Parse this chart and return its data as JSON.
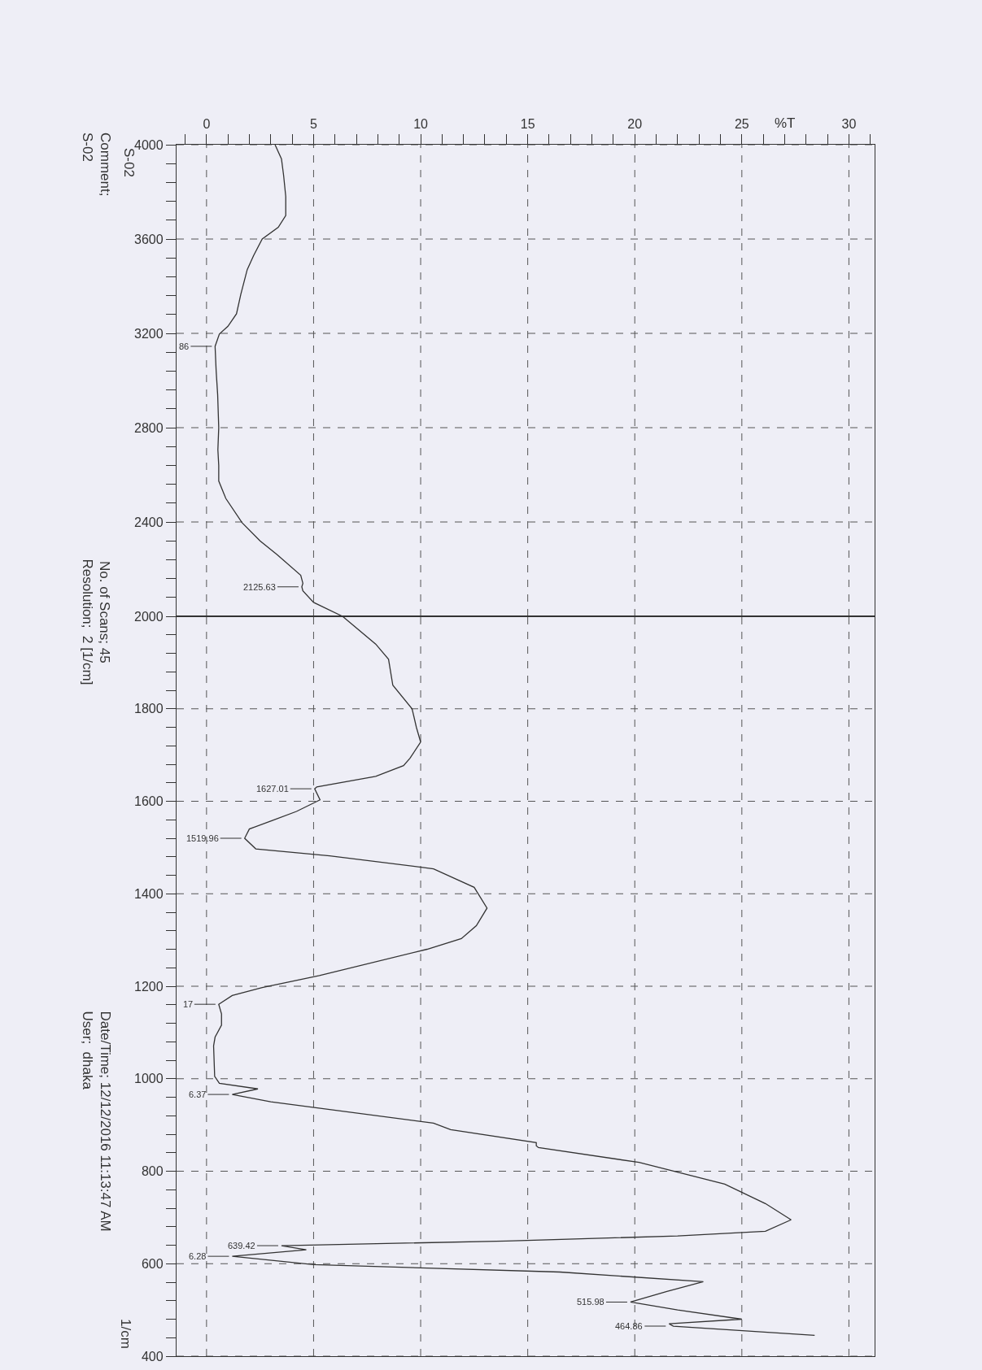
{
  "chart_data": [
    {
      "type": "line",
      "orientation": "horizontal",
      "xlabel": "%T",
      "grid": true,
      "line_style": "solid",
      "ylim": [
        2000,
        4000
      ],
      "yticks": [
        4000,
        {
          "value": 3920,
          "label": null
        },
        {
          "value": 3840,
          "label": null
        },
        {
          "value": 3760,
          "label": null
        },
        {
          "value": 3680,
          "label": null
        },
        3600,
        {
          "value": 3520,
          "label": null
        },
        {
          "value": 3440,
          "label": null
        },
        {
          "value": 3360,
          "label": null
        },
        {
          "value": 3280,
          "label": null
        },
        3200,
        {
          "value": 3120,
          "label": null
        },
        {
          "value": 3040,
          "label": null
        },
        {
          "value": 2960,
          "label": null
        },
        {
          "value": 2880,
          "label": null
        },
        2800,
        {
          "value": 2720,
          "label": null
        },
        {
          "value": 2640,
          "label": null
        },
        {
          "value": 2560,
          "label": null
        },
        {
          "value": 2480,
          "label": null
        },
        2400,
        {
          "value": 2320,
          "label": null
        },
        {
          "value": 2240,
          "label": null
        },
        {
          "value": 2160,
          "label": null
        },
        {
          "value": 2080,
          "label": null
        },
        2000
      ],
      "xlim": [
        -1.4,
        31.2
      ],
      "xticks": [
        {
          "value": -1,
          "label": null
        },
        0,
        {
          "value": 1,
          "label": null
        },
        {
          "value": 2,
          "label": null
        },
        {
          "value": 3,
          "label": null
        },
        {
          "value": 4,
          "label": null
        },
        5,
        {
          "value": 6,
          "label": null
        },
        {
          "value": 7,
          "label": null
        },
        {
          "value": 8,
          "label": null
        },
        {
          "value": 9,
          "label": null
        },
        10,
        {
          "value": 11,
          "label": null
        },
        {
          "value": 12,
          "label": null
        },
        {
          "value": 13,
          "label": null
        },
        {
          "value": 14,
          "label": null
        },
        15,
        {
          "value": 16,
          "label": null
        },
        {
          "value": 17,
          "label": null
        },
        {
          "value": 18,
          "label": null
        },
        {
          "value": 19,
          "label": null
        },
        20,
        {
          "value": 21,
          "label": null
        },
        {
          "value": 22,
          "label": null
        },
        {
          "value": 23,
          "label": null
        },
        {
          "value": 24,
          "label": null
        },
        25,
        {
          "value": 26,
          "label": null
        },
        {
          "value": 27,
          "label": null
        },
        {
          "value": 28,
          "label": null
        },
        {
          "value": 29,
          "label": null
        },
        30,
        {
          "value": 31,
          "label": null
        }
      ],
      "series": [
        {
          "color": "#333333",
          "x": [
            4000,
            3940,
            3870,
            3780,
            3700,
            3650,
            3600,
            3530,
            3470,
            3365,
            3283,
            3230,
            3197,
            3145,
            3040,
            2940,
            2800,
            2706,
            2640,
            2574,
            2500,
            2397,
            2320,
            2261,
            2174,
            2140,
            2125,
            2108,
            2059,
            2000
          ],
          "values": [
            3.2,
            3.5,
            3.6,
            3.7,
            3.7,
            3.35,
            2.6,
            2.2,
            1.9,
            1.6,
            1.4,
            1.0,
            0.6,
            0.4,
            0.45,
            0.52,
            0.57,
            0.53,
            0.57,
            0.57,
            0.9,
            1.66,
            2.5,
            3.3,
            4.4,
            4.5,
            4.45,
            4.5,
            5.0,
            6.35
          ]
        }
      ],
      "annotations": [
        "S-02",
        "Comment;",
        "S-02",
        {
          "text": "86",
          "x": 0.4,
          "y": 3145
        },
        {
          "text": "2125.63",
          "x": 4.45,
          "y": 2125
        }
      ]
    },
    {
      "type": "line",
      "orientation": "horizontal",
      "grid": true,
      "line_style": "solid",
      "tick_labels": "y",
      "ylim": [
        400,
        2000
      ],
      "yticks": [
        {
          "value": 2000,
          "label": null
        },
        {
          "value": 1960,
          "label": null
        },
        {
          "value": 1920,
          "label": null
        },
        {
          "value": 1880,
          "label": null
        },
        {
          "value": 1840,
          "label": null
        },
        1800,
        {
          "value": 1760,
          "label": null
        },
        {
          "value": 1720,
          "label": null
        },
        {
          "value": 1680,
          "label": null
        },
        {
          "value": 1640,
          "label": null
        },
        1600,
        {
          "value": 1560,
          "label": null
        },
        {
          "value": 1520,
          "label": null
        },
        {
          "value": 1480,
          "label": null
        },
        {
          "value": 1440,
          "label": null
        },
        1400,
        {
          "value": 1360,
          "label": null
        },
        {
          "value": 1320,
          "label": null
        },
        {
          "value": 1280,
          "label": null
        },
        {
          "value": 1240,
          "label": null
        },
        1200,
        {
          "value": 1160,
          "label": null
        },
        {
          "value": 1120,
          "label": null
        },
        {
          "value": 1080,
          "label": null
        },
        {
          "value": 1040,
          "label": null
        },
        1000,
        {
          "value": 960,
          "label": null
        },
        {
          "value": 920,
          "label": null
        },
        {
          "value": 880,
          "label": null
        },
        {
          "value": 840,
          "label": null
        },
        800,
        {
          "value": 760,
          "label": null
        },
        {
          "value": 720,
          "label": null
        },
        {
          "value": 680,
          "label": null
        },
        {
          "value": 640,
          "label": null
        },
        600,
        {
          "value": 560,
          "label": null
        },
        {
          "value": 520,
          "label": null
        },
        {
          "value": 480,
          "label": null
        },
        {
          "value": 440,
          "label": null
        },
        400
      ],
      "xlim": [
        -1.4,
        31.2
      ],
      "xticks": [
        0,
        5,
        10,
        15,
        20,
        25,
        30
      ],
      "series": [
        {
          "color": "#333333",
          "x": [
            2000,
            1940,
            1907,
            1851,
            1800,
            1760,
            1728,
            1693,
            1677,
            1654,
            1631,
            1627,
            1603,
            1578,
            1559,
            1540,
            1520,
            1497,
            1482,
            1454,
            1414,
            1369,
            1331,
            1303,
            1280,
            1223,
            1197,
            1180,
            1161,
            1140,
            1116,
            1090,
            1071,
            1005,
            990,
            978,
            966,
            950,
            904,
            890,
            862,
            855,
            851,
            819,
            772,
            730,
            695,
            670,
            660,
            649,
            639,
            630,
            616,
            598,
            582,
            561,
            540,
            517,
            500,
            480,
            470,
            465,
            445
          ],
          "values": [
            6.35,
            7.9,
            8.5,
            8.7,
            9.6,
            9.8,
            10.0,
            9.5,
            9.2,
            7.9,
            5.15,
            5.05,
            5.3,
            4.2,
            3.1,
            2.0,
            1.78,
            2.3,
            5.75,
            10.6,
            12.5,
            13.1,
            12.6,
            11.9,
            10.3,
            5.27,
            2.6,
            1.2,
            0.57,
            0.7,
            0.7,
            0.4,
            0.33,
            0.38,
            0.6,
            2.4,
            1.2,
            3.0,
            10.6,
            11.4,
            15.4,
            15.4,
            15.5,
            20.2,
            24.2,
            26.1,
            27.3,
            26.1,
            22.0,
            14.0,
            3.5,
            4.66,
            1.2,
            5.0,
            16.5,
            23.2,
            21.5,
            19.8,
            22.0,
            25.0,
            21.6,
            21.8,
            28.4
          ]
        }
      ],
      "annotations": [
        "No. of Scans; 45",
        "Resolution;  2 [1/cm]",
        "1/cm",
        "Date/Time; 12/12/2016 11:13:47 AM",
        "User;  dhaka",
        {
          "text": "1627.01",
          "x": 5.05,
          "y": 1627
        },
        {
          "text": "1519.96",
          "x": 1.78,
          "y": 1520
        },
        {
          "text": "17",
          "x": 0.57,
          "y": 1161
        },
        {
          "text": "6.37",
          "x": 1.2,
          "y": 966
        },
        {
          "text": "639.42",
          "x": 3.5,
          "y": 639
        },
        {
          "text": "6.28",
          "x": 1.2,
          "y": 616
        },
        {
          "text": "515.98",
          "x": 19.8,
          "y": 517
        },
        {
          "text": "464.86",
          "x": 21.6,
          "y": 465
        }
      ]
    }
  ]
}
